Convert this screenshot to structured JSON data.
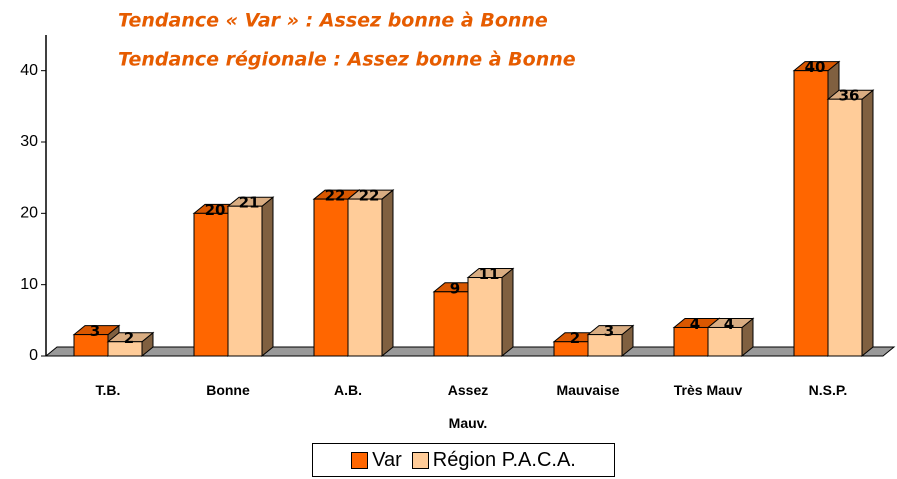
{
  "chart_data": {
    "type": "bar3d",
    "title": "Tendance « Var » : Assez bonne à Bonne",
    "subtitle": "Tendance régionale : Assez bonne à Bonne",
    "categories": [
      "T.B.",
      "Bonne",
      "A.B.",
      "Assez Mauv.",
      "Mauvaise",
      "Très Mauv",
      "N.S.P."
    ],
    "series": [
      {
        "name": "Var",
        "color": "#ff6600",
        "values": [
          3,
          20,
          22,
          9,
          2,
          4,
          40
        ]
      },
      {
        "name": "Région P.A.C.A.",
        "color": "#ffcc99",
        "values": [
          2,
          21,
          22,
          11,
          3,
          4,
          36
        ]
      }
    ],
    "ylim": [
      0,
      45
    ],
    "yticks": [
      0,
      10,
      20,
      30,
      40
    ],
    "legend": "bottom"
  }
}
